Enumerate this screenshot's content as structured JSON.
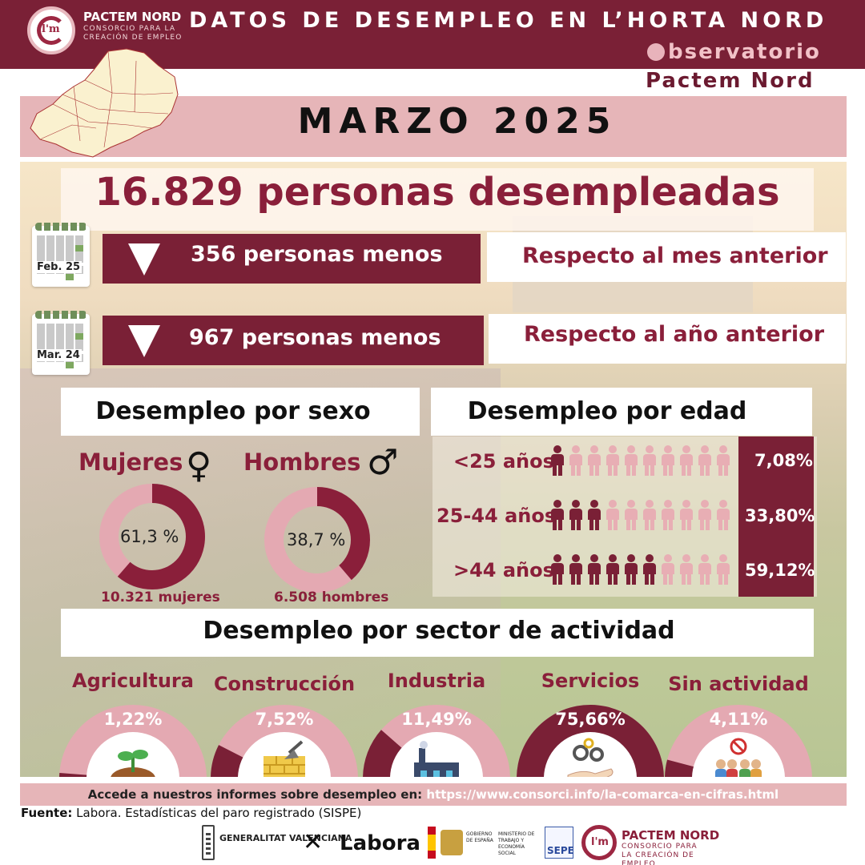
{
  "header": {
    "brand_name": "PACTEM NORD",
    "brand_sub": "CONSORCIO PARA LA CREACIÓN DE EMPLEO",
    "title": "DATOS DE DESEMPLEO EN L’HORTA NORD",
    "observatory_title": "bservatorio",
    "observatory_sub": "Pactem Nord"
  },
  "month": "MARZO 2025",
  "total": "16.829 personas desempleadas",
  "comparisons": [
    {
      "calendar_label": "Feb. 25",
      "change_text": "356 personas menos",
      "reference_text": "Respecto al mes anterior",
      "direction": "down"
    },
    {
      "calendar_label": "Mar. 24",
      "change_text": "967 personas menos",
      "reference_text": "Respecto al año anterior",
      "direction": "down"
    }
  ],
  "sex_section": {
    "heading": "Desempleo por sexo",
    "women": {
      "label": "Mujeres",
      "symbol": "♀",
      "percent_text": "61,3 %",
      "percent": 61.3,
      "count_text": "10.321 mujeres"
    },
    "men": {
      "label": "Hombres",
      "symbol": "♂",
      "percent_text": "38,7 %",
      "percent": 38.7,
      "count_text": "6.508 hombres"
    }
  },
  "age_section": {
    "heading": "Desempleo por edad",
    "groups": [
      {
        "label": "<25 años",
        "percent_text": "7,08%",
        "highlighted": 1,
        "total": 10
      },
      {
        "label": "25-44 años",
        "percent_text": "33,80%",
        "highlighted": 3,
        "total": 10
      },
      {
        "label": ">44 años",
        "percent_text": "59,12%",
        "highlighted": 6,
        "total": 10
      }
    ]
  },
  "sector_section": {
    "heading": "Desempleo por sector de actividad",
    "sectors": [
      {
        "label": "Agricultura",
        "percent_text": "1,22%",
        "percent": 1.22,
        "icon": "plant-icon"
      },
      {
        "label": "Construcción",
        "percent_text": "7,52%",
        "percent": 7.52,
        "icon": "bricks-trowel-icon"
      },
      {
        "label": "Industria",
        "percent_text": "11,49%",
        "percent": 11.49,
        "icon": "factory-icon"
      },
      {
        "label": "Servicios",
        "percent_text": "75,66%",
        "percent": 75.66,
        "icon": "gears-hand-icon"
      },
      {
        "label": "Sin actividad",
        "percent_text": "4,11%",
        "percent": 4.11,
        "icon": "people-no-sign-icon"
      }
    ]
  },
  "footer": {
    "link_prefix": "Accede a nuestros informes sobre desempleo en: ",
    "link_url": "https://www.consorci.info/la-comarca-en-cifras.html",
    "source_label": "Fuente:",
    "source_text": " Labora. Estadísticas del paro registrado (SISPE)",
    "logos": [
      "GENERALITAT VALENCIANA",
      "Labora",
      "GOBIERNO DE ESPAÑA",
      "MINISTERIO DE TRABAJO Y ECONOMÍA SOCIAL",
      "SEPE",
      "PACTEM NORD"
    ],
    "logo_sub": "CONSORCIO PARA LA CREACIÓN DE EMPLEO"
  },
  "colors": {
    "maroon": "#7a2036",
    "accent": "#8a1f3a",
    "pink": "#e6b5b8",
    "light_pink": "#e4a9b2"
  }
}
